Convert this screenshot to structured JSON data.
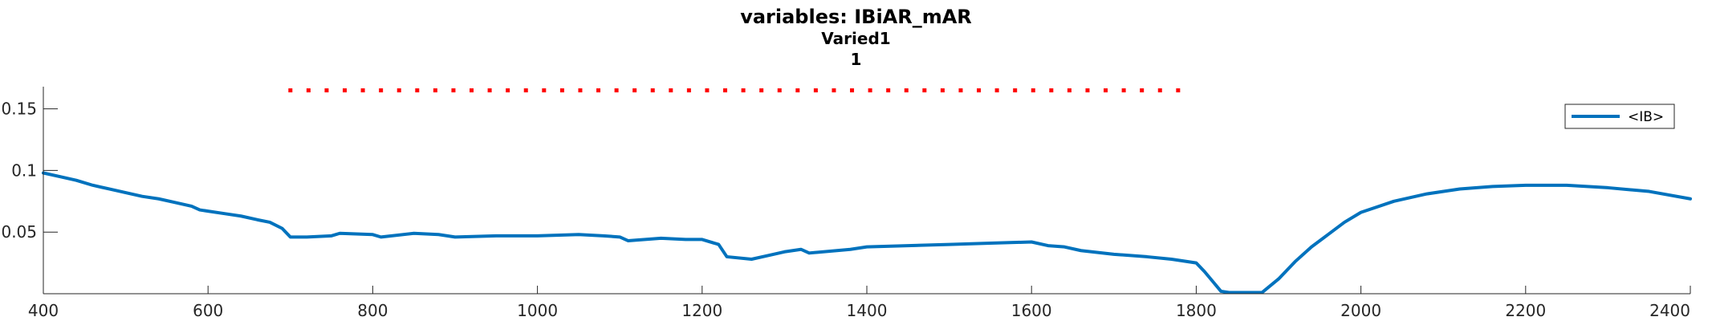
{
  "title": {
    "line1": "variables: IBiAR_mAR",
    "line2": "Varied1",
    "line3": "1"
  },
  "colors": {
    "series": "#0072BD",
    "markers": "#FF0000",
    "axis": "#262626"
  },
  "chart_data": {
    "type": "line",
    "title": "variables: IBiAR_mAR",
    "subtitle": [
      "Varied1",
      "1"
    ],
    "xlabel": "",
    "ylabel": "",
    "xlim": [
      400,
      2400
    ],
    "ylim": [
      0,
      0.168
    ],
    "xticks": [
      400,
      600,
      800,
      1000,
      1200,
      1400,
      1600,
      1800,
      2000,
      2200,
      2400
    ],
    "yticks": [
      0.05,
      0.1,
      0.15
    ],
    "ytick_labels": [
      "0.05",
      "0.1",
      "0.15"
    ],
    "grid": false,
    "legend": {
      "placement": "top-right",
      "entries": [
        "<IB>"
      ]
    },
    "series": [
      {
        "name": "<IB>",
        "color": "#0072BD",
        "points": [
          [
            400,
            0.098
          ],
          [
            420,
            0.095
          ],
          [
            440,
            0.092
          ],
          [
            460,
            0.088
          ],
          [
            480,
            0.085
          ],
          [
            500,
            0.082
          ],
          [
            520,
            0.079
          ],
          [
            540,
            0.077
          ],
          [
            560,
            0.074
          ],
          [
            580,
            0.071
          ],
          [
            590,
            0.068
          ],
          [
            600,
            0.067
          ],
          [
            620,
            0.065
          ],
          [
            640,
            0.063
          ],
          [
            660,
            0.06
          ],
          [
            675,
            0.058
          ],
          [
            690,
            0.053
          ],
          [
            700,
            0.046
          ],
          [
            720,
            0.046
          ],
          [
            750,
            0.047
          ],
          [
            760,
            0.049
          ],
          [
            800,
            0.048
          ],
          [
            810,
            0.046
          ],
          [
            850,
            0.049
          ],
          [
            880,
            0.048
          ],
          [
            900,
            0.046
          ],
          [
            950,
            0.047
          ],
          [
            1000,
            0.047
          ],
          [
            1050,
            0.048
          ],
          [
            1080,
            0.047
          ],
          [
            1100,
            0.046
          ],
          [
            1110,
            0.043
          ],
          [
            1150,
            0.045
          ],
          [
            1180,
            0.044
          ],
          [
            1200,
            0.044
          ],
          [
            1220,
            0.04
          ],
          [
            1230,
            0.03
          ],
          [
            1260,
            0.028
          ],
          [
            1280,
            0.031
          ],
          [
            1300,
            0.034
          ],
          [
            1320,
            0.036
          ],
          [
            1330,
            0.033
          ],
          [
            1380,
            0.036
          ],
          [
            1400,
            0.038
          ],
          [
            1450,
            0.039
          ],
          [
            1500,
            0.04
          ],
          [
            1550,
            0.041
          ],
          [
            1600,
            0.042
          ],
          [
            1620,
            0.039
          ],
          [
            1640,
            0.038
          ],
          [
            1660,
            0.035
          ],
          [
            1700,
            0.032
          ],
          [
            1740,
            0.03
          ],
          [
            1770,
            0.028
          ],
          [
            1800,
            0.025
          ],
          [
            1810,
            0.018
          ],
          [
            1820,
            0.01
          ],
          [
            1830,
            0.002
          ],
          [
            1840,
            0.001
          ],
          [
            1880,
            0.001
          ],
          [
            1900,
            0.012
          ],
          [
            1920,
            0.026
          ],
          [
            1940,
            0.038
          ],
          [
            1960,
            0.048
          ],
          [
            1980,
            0.058
          ],
          [
            2000,
            0.066
          ],
          [
            2040,
            0.075
          ],
          [
            2080,
            0.081
          ],
          [
            2120,
            0.085
          ],
          [
            2160,
            0.087
          ],
          [
            2200,
            0.088
          ],
          [
            2250,
            0.088
          ],
          [
            2300,
            0.086
          ],
          [
            2350,
            0.083
          ],
          [
            2400,
            0.077
          ]
        ]
      },
      {
        "name": "",
        "color": "#FF0000",
        "style": "markers",
        "x_start": 700,
        "x_end": 1780,
        "x_step": 22,
        "y": 0.165
      }
    ]
  }
}
